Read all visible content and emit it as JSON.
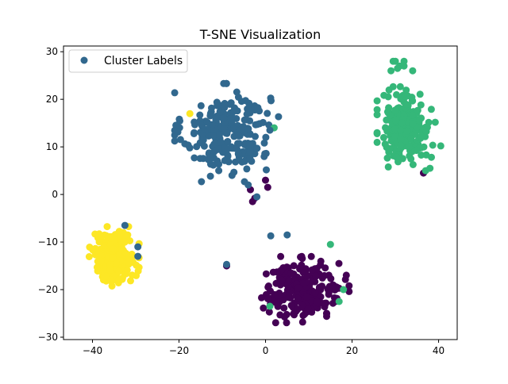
{
  "chart_data": {
    "type": "scatter",
    "title": "T-SNE Visualization",
    "xlabel": "",
    "ylabel": "",
    "xlim": [
      -46.7,
      44.3
    ],
    "ylim": [
      -30.5,
      31.2
    ],
    "xticks": [
      -40,
      -20,
      0,
      20,
      40
    ],
    "yticks": [
      -30,
      -20,
      -10,
      0,
      10,
      20,
      30
    ],
    "xtick_labels": [
      "−40",
      "−20",
      "0",
      "20",
      "40"
    ],
    "ytick_labels": [
      "−30",
      "−20",
      "−10",
      "0",
      "10",
      "20",
      "30"
    ],
    "grid": false,
    "legend": {
      "entries": [
        "Cluster Labels"
      ],
      "placement": "upper-left",
      "marker_color": "#31688e"
    },
    "colormap": "viridis",
    "class_colors": [
      "#440154",
      "#31688e",
      "#35b779",
      "#fde725"
    ],
    "clusters": [
      {
        "label": 1,
        "center": [
          -9,
          13
        ],
        "spread": [
          5,
          4.3
        ],
        "count": 240
      },
      {
        "label": 2,
        "center": [
          32.5,
          14
        ],
        "spread": [
          2.8,
          3.6
        ],
        "count": 230
      },
      {
        "label": 3,
        "center": [
          -35,
          -13
        ],
        "spread": [
          2.4,
          2.6
        ],
        "count": 230
      },
      {
        "label": 0,
        "center": [
          9,
          -20
        ],
        "spread": [
          4.3,
          2.9
        ],
        "count": 240
      }
    ],
    "extra_points": [
      {
        "x": 31,
        "y": 27,
        "label": 2
      },
      {
        "x": 30,
        "y": 28,
        "label": 2
      },
      {
        "x": 32,
        "y": 28,
        "label": 2
      },
      {
        "x": 29,
        "y": 26,
        "label": 2
      },
      {
        "x": 30.5,
        "y": 26.5,
        "label": 2
      },
      {
        "x": 32,
        "y": 27,
        "label": 2
      },
      {
        "x": 34,
        "y": 26,
        "label": 2
      },
      {
        "x": 29.5,
        "y": 28,
        "label": 2
      },
      {
        "x": 40.5,
        "y": 10.2,
        "label": 2
      },
      {
        "x": -17.5,
        "y": 17,
        "label": 3
      },
      {
        "x": 2,
        "y": 14,
        "label": 2
      },
      {
        "x": -3,
        "y": -1.5,
        "label": 0
      },
      {
        "x": -2.5,
        "y": -0.8,
        "label": 0
      },
      {
        "x": -2,
        "y": -0.5,
        "label": 1
      },
      {
        "x": -3.5,
        "y": 1,
        "label": 0
      },
      {
        "x": -4,
        "y": 2,
        "label": 1
      },
      {
        "x": 0,
        "y": 3,
        "label": 0
      },
      {
        "x": 0.5,
        "y": 1.5,
        "label": 0
      },
      {
        "x": 1,
        "y": 13.5,
        "label": 1
      },
      {
        "x": -9,
        "y": -15,
        "label": 0
      },
      {
        "x": -9,
        "y": -14.7,
        "label": 1
      },
      {
        "x": 5,
        "y": -8.5,
        "label": 1
      },
      {
        "x": 1.2,
        "y": -8.7,
        "label": 1
      },
      {
        "x": 15,
        "y": -10.5,
        "label": 2
      },
      {
        "x": 18,
        "y": -20,
        "label": 2
      },
      {
        "x": 17,
        "y": -22.5,
        "label": 2
      },
      {
        "x": 1,
        "y": -23.5,
        "label": 2
      },
      {
        "x": -32.5,
        "y": -6.5,
        "label": 1
      },
      {
        "x": -29.5,
        "y": -11,
        "label": 1
      },
      {
        "x": -29.5,
        "y": -13,
        "label": 1
      },
      {
        "x": 36.5,
        "y": 4.5,
        "label": 0
      },
      {
        "x": 37,
        "y": 5,
        "label": 2
      },
      {
        "x": 38,
        "y": 5.5,
        "label": 2
      }
    ]
  }
}
